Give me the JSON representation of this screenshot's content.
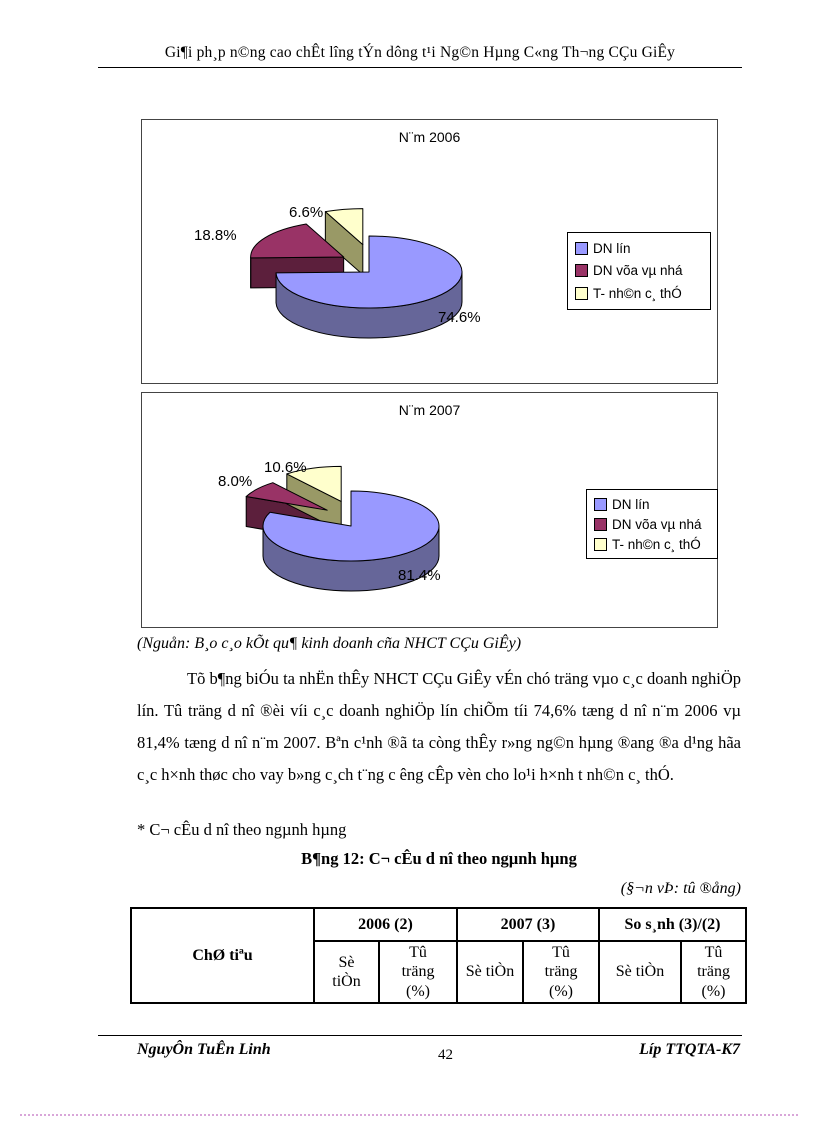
{
  "page": {
    "header_title": "Gi¶i ph¸p n©ng cao chÊt lîng tÝn dông t¹i Ng©n Hµng C«ng Th¬ng CÇu GiÊy",
    "footer": {
      "author": "NguyÔn TuÊn Linh",
      "page_number": "42",
      "class": "Líp TTQTA-K7"
    }
  },
  "source_note": "(Nguån: B¸o c¸o kÕt qu¶ kinh doanh cña NHCT CÇu GiÊy)",
  "paragraph": "Tõ b¶ng biÓu ta nhËn thÊy NHCT CÇu GiÊy vÉn chó träng vµo c¸c doanh nghiÖp lín. Tû träng d nî ®èi víi c¸c doanh nghiÖp lín chiÕm tíi 74,6% tæng d nî n¨m 2006 vµ 81,4% tæng d nî n¨m 2007. Bªn c¹nh ®ã ta còng thÊy r»ng ng©n hµng ®ang ®a d¹ng hãa c¸c h×nh thøc cho vay b»ng c¸ch t¨ng c êng cÊp vèn cho lo¹i h×nh t nh©n c¸ thÓ.",
  "bullet_line": "* C¬ cÊu d nî theo ngµnh hµng",
  "table_caption": "B¶ng 12: C¬ cÊu d nî theo ngµnh hµng",
  "unit_note": "(§¬n vÞ: tû ®ång)",
  "table": {
    "col_header_main": "ChØ tiªu",
    "col_groups": [
      "2006 (2)",
      "2007 (3)",
      "So s¸nh (3)/(2)"
    ],
    "sub_headers": [
      "Sè tiÒn",
      "Tû träng (%)"
    ]
  },
  "chart_data": [
    {
      "type": "pie",
      "title": "N¨m 2006",
      "labels": [
        "DN lín",
        "DN võa vµ nhá",
        "T- nh©n c¸ thÓ"
      ],
      "values": [
        74.6,
        18.8,
        6.6
      ],
      "value_labels": [
        "74.6%",
        "18.8%",
        "6.6%"
      ],
      "colors": [
        "#9999FF",
        "#993366",
        "#FFFFCC"
      ],
      "side_colors": [
        "#666699",
        "#5C1F3C",
        "#999966"
      ],
      "exploded": [
        false,
        true,
        true
      ],
      "legend_position": "right",
      "style": "3d-exploded"
    },
    {
      "type": "pie",
      "title": "N¨m 2007",
      "labels": [
        "DN lín",
        "DN võa vµ nhá",
        "T- nh©n c¸ thÓ"
      ],
      "values": [
        81.4,
        8.0,
        10.6
      ],
      "value_labels": [
        "81.4%",
        "8.0%",
        "10.6%"
      ],
      "colors": [
        "#9999FF",
        "#993366",
        "#FFFFCC"
      ],
      "side_colors": [
        "#666699",
        "#5C1F3C",
        "#999966"
      ],
      "exploded": [
        false,
        true,
        true
      ],
      "legend_position": "right",
      "style": "3d-exploded"
    }
  ]
}
